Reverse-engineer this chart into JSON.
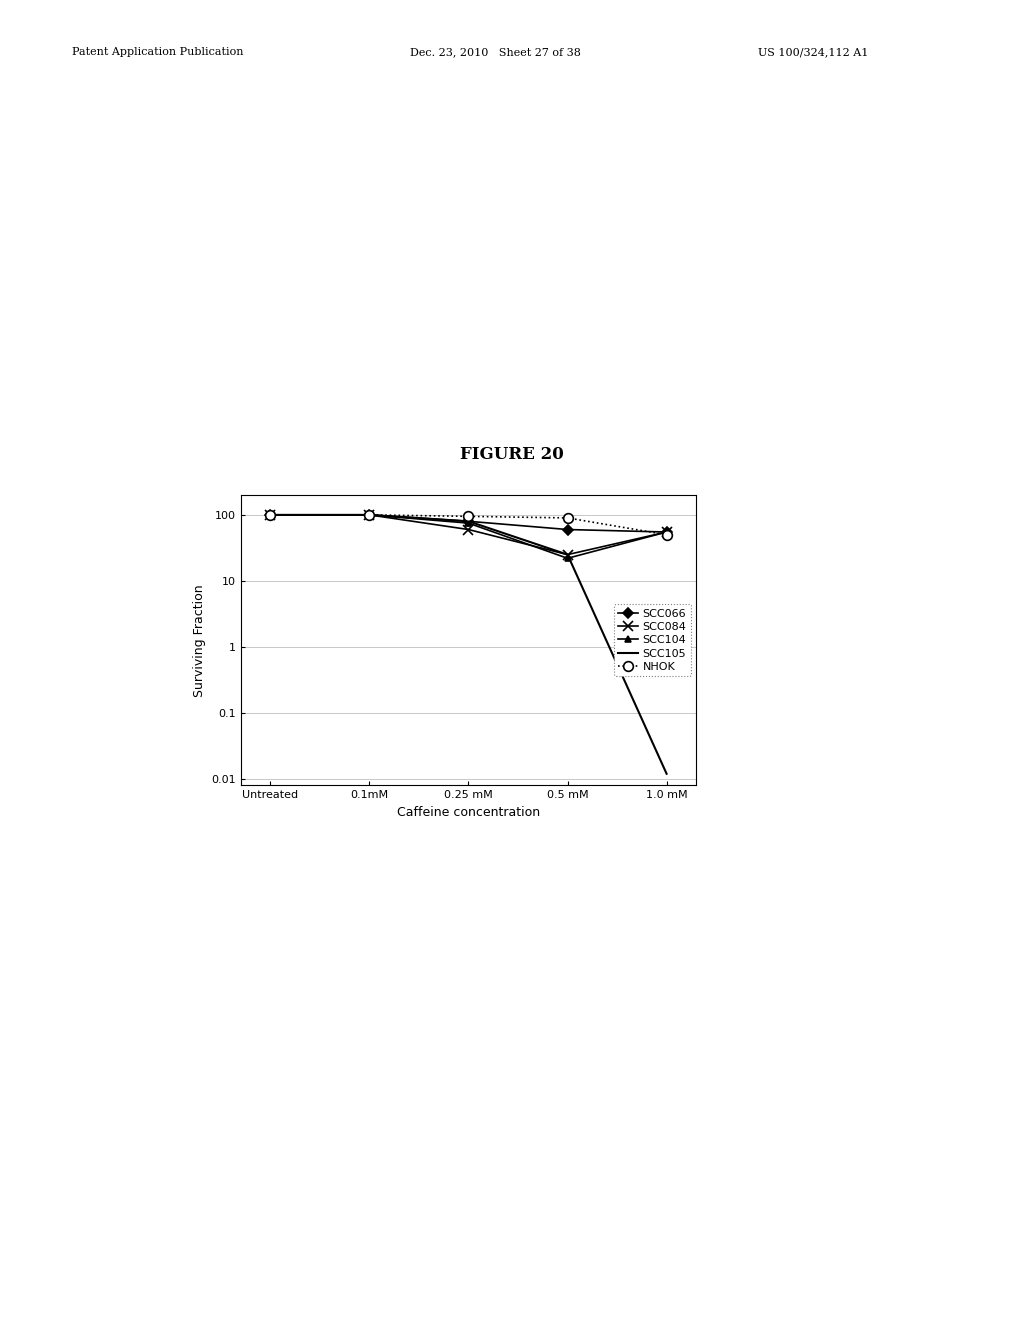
{
  "title": "FIGURE 20",
  "xlabel": "Caffeine concentration",
  "ylabel": "Surviving Fraction",
  "x_labels": [
    "Untreated",
    "0.1mM",
    "0.25 mM",
    "0.5 mM",
    "1.0 mM"
  ],
  "x_positions": [
    0,
    1,
    2,
    3,
    4
  ],
  "header_left": "Patent Application Publication",
  "header_mid": "Dec. 23, 2010   Sheet 27 of 38",
  "header_right": "US 100/324,112 A1",
  "series": [
    {
      "name": "SCC066",
      "values": [
        100,
        100,
        80,
        60,
        55
      ],
      "color": "black",
      "linestyle": "-",
      "marker": "D",
      "markersize": 5,
      "linewidth": 1.2,
      "markerfacecolor": "black"
    },
    {
      "name": "SCC084",
      "values": [
        100,
        100,
        60,
        25,
        55
      ],
      "color": "black",
      "linestyle": "-",
      "marker": "x",
      "markersize": 7,
      "linewidth": 1.2,
      "markerfacecolor": "black"
    },
    {
      "name": "SCC104",
      "values": [
        100,
        100,
        75,
        22,
        55
      ],
      "color": "black",
      "linestyle": "-",
      "marker": "^",
      "markersize": 5,
      "linewidth": 1.2,
      "markerfacecolor": "black"
    },
    {
      "name": "SCC105",
      "values": [
        100,
        100,
        80,
        25,
        0.012
      ],
      "color": "black",
      "linestyle": "-",
      "marker": "",
      "markersize": 0,
      "linewidth": 1.5,
      "markerfacecolor": "black"
    },
    {
      "name": "NHOK",
      "values": [
        100,
        100,
        95,
        90,
        50
      ],
      "color": "black",
      "linestyle": ":",
      "marker": "o",
      "markersize": 7,
      "linewidth": 1.2,
      "markerfacecolor": "white"
    }
  ],
  "ylim": [
    0.008,
    200
  ],
  "yticks": [
    0.01,
    0.1,
    1,
    10,
    100
  ],
  "ytick_labels": [
    "0.01",
    "0.1",
    "1",
    "10",
    "100"
  ],
  "background_color": "#ffffff",
  "figure_title_fontsize": 12,
  "axis_label_fontsize": 9,
  "tick_fontsize": 8,
  "legend_fontsize": 8,
  "header_fontsize": 8
}
